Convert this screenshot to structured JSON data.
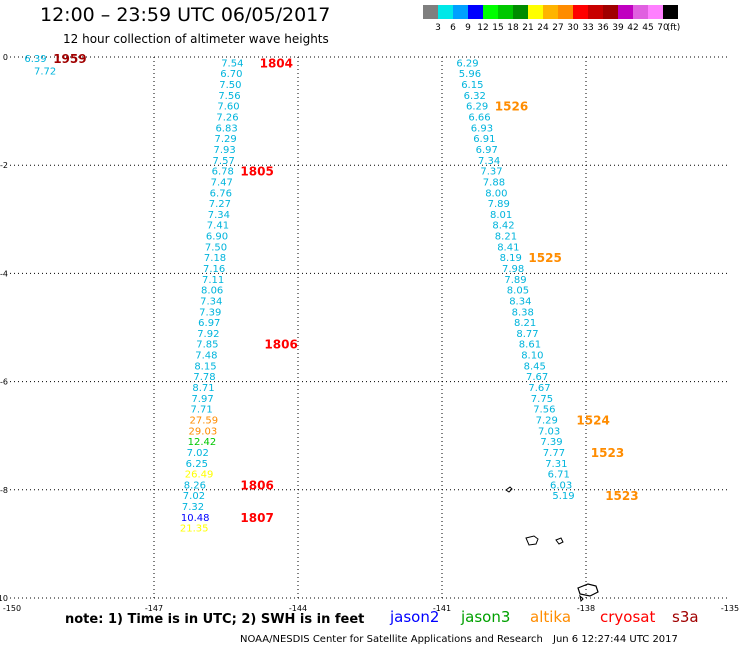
{
  "header": {
    "title": "12:00 – 23:59 UTC 06/05/2017",
    "subtitle": "12 hour collection of altimeter wave heights"
  },
  "legend": {
    "colors": [
      "#7f7f7f",
      "#00e8e8",
      "#00a0ff",
      "#0000ff",
      "#00ff00",
      "#00c800",
      "#008c00",
      "#ffff00",
      "#ffb400",
      "#ff8c00",
      "#ff0000",
      "#c80000",
      "#a00000",
      "#c000c0",
      "#e060e0",
      "#ff80ff",
      "#000000"
    ],
    "labels": [
      "3",
      "6",
      "9",
      "12",
      "15",
      "18",
      "21",
      "24",
      "27",
      "30",
      "33",
      "36",
      "39",
      "42",
      "45",
      "70",
      "(ft)"
    ]
  },
  "axes": {
    "x_labels": [
      "-150",
      "-147",
      "-144",
      "-141",
      "-138",
      "-135"
    ],
    "y_labels": [
      "0",
      "-2",
      "-4",
      "-6",
      "-8",
      "-10"
    ]
  },
  "map_data": {
    "track_left_top": [
      {
        "v": "6.39",
        "c": "#00b4dc",
        "lon": -149.7,
        "lat": -0.02
      },
      {
        "v": "7.72",
        "c": "#00b4dc",
        "lon": -149.5,
        "lat": -0.25
      }
    ],
    "track_left": {
      "color_default": "#00b4dc",
      "points": [
        {
          "v": "7.54",
          "lon": -145.6,
          "lat": -0.1
        },
        {
          "v": "6.70",
          "lon": -145.62,
          "lat": -0.3
        },
        {
          "v": "7.50",
          "lon": -145.64,
          "lat": -0.5
        },
        {
          "v": "7.56",
          "lon": -145.66,
          "lat": -0.7
        },
        {
          "v": "7.60",
          "lon": -145.68,
          "lat": -0.9
        },
        {
          "v": "7.26",
          "lon": -145.7,
          "lat": -1.1
        },
        {
          "v": "6.83",
          "lon": -145.72,
          "lat": -1.3
        },
        {
          "v": "7.29",
          "lon": -145.74,
          "lat": -1.5
        },
        {
          "v": "7.93",
          "lon": -145.76,
          "lat": -1.7
        },
        {
          "v": "7.57",
          "lon": -145.78,
          "lat": -1.9
        },
        {
          "v": "6.78",
          "lon": -145.8,
          "lat": -2.1
        },
        {
          "v": "7.47",
          "lon": -145.82,
          "lat": -2.3
        },
        {
          "v": "6.76",
          "lon": -145.84,
          "lat": -2.5
        },
        {
          "v": "7.27",
          "lon": -145.86,
          "lat": -2.7
        },
        {
          "v": "7.34",
          "lon": -145.88,
          "lat": -2.9
        },
        {
          "v": "7.41",
          "lon": -145.9,
          "lat": -3.1
        },
        {
          "v": "6.90",
          "lon": -145.92,
          "lat": -3.3
        },
        {
          "v": "7.50",
          "lon": -145.94,
          "lat": -3.5
        },
        {
          "v": "7.18",
          "lon": -145.96,
          "lat": -3.7
        },
        {
          "v": "7.16",
          "lon": -145.98,
          "lat": -3.9
        },
        {
          "v": "7.11",
          "lon": -146.0,
          "lat": -4.1
        },
        {
          "v": "8.06",
          "lon": -146.02,
          "lat": -4.3
        },
        {
          "v": "7.34",
          "lon": -146.04,
          "lat": -4.5
        },
        {
          "v": "7.39",
          "lon": -146.06,
          "lat": -4.7
        },
        {
          "v": "6.97",
          "lon": -146.08,
          "lat": -4.9
        },
        {
          "v": "7.92",
          "lon": -146.1,
          "lat": -5.1
        },
        {
          "v": "7.85",
          "lon": -146.12,
          "lat": -5.3
        },
        {
          "v": "7.48",
          "lon": -146.14,
          "lat": -5.5
        },
        {
          "v": "8.15",
          "lon": -146.16,
          "lat": -5.7
        },
        {
          "v": "7.78",
          "lon": -146.18,
          "lat": -5.9
        },
        {
          "v": "8.71",
          "lon": -146.2,
          "lat": -6.1
        },
        {
          "v": "7.97",
          "lon": -146.22,
          "lat": -6.3
        },
        {
          "v": "7.71",
          "lon": -146.24,
          "lat": -6.5
        },
        {
          "v": "27.59",
          "lon": -146.26,
          "lat": -6.7,
          "c": "#ff8c00"
        },
        {
          "v": "29.03",
          "lon": -146.28,
          "lat": -6.9,
          "c": "#ff8c00"
        },
        {
          "v": "12.42",
          "lon": -146.3,
          "lat": -7.1,
          "c": "#00c800"
        },
        {
          "v": "7.02",
          "lon": -146.32,
          "lat": -7.3
        },
        {
          "v": "6.25",
          "lon": -146.34,
          "lat": -7.5
        },
        {
          "v": "26.49",
          "lon": -146.36,
          "lat": -7.7,
          "c": "#ffff00"
        },
        {
          "v": "8.26",
          "lon": -146.38,
          "lat": -7.9
        },
        {
          "v": "7.02",
          "lon": -146.4,
          "lat": -8.1
        },
        {
          "v": "7.32",
          "lon": -146.42,
          "lat": -8.3
        },
        {
          "v": "10.48",
          "lon": -146.44,
          "lat": -8.5,
          "c": "#0000ff"
        },
        {
          "v": "21.35",
          "lon": -146.46,
          "lat": -8.7,
          "c": "#ffff00"
        }
      ]
    },
    "track_right": {
      "color_default": "#00b4dc",
      "points": [
        {
          "v": "6.29",
          "lon": -140.7,
          "lat": -0.1
        },
        {
          "v": "5.96",
          "lon": -140.65,
          "lat": -0.3
        },
        {
          "v": "6.15",
          "lon": -140.6,
          "lat": -0.5
        },
        {
          "v": "6.32",
          "lon": -140.55,
          "lat": -0.7
        },
        {
          "v": "6.29",
          "lon": -140.5,
          "lat": -0.9
        },
        {
          "v": "6.66",
          "lon": -140.45,
          "lat": -1.1
        },
        {
          "v": "6.93",
          "lon": -140.4,
          "lat": -1.3
        },
        {
          "v": "6.91",
          "lon": -140.35,
          "lat": -1.5
        },
        {
          "v": "6.97",
          "lon": -140.3,
          "lat": -1.7
        },
        {
          "v": "7.34",
          "lon": -140.25,
          "lat": -1.9
        },
        {
          "v": "7.37",
          "lon": -140.2,
          "lat": -2.1
        },
        {
          "v": "7.88",
          "lon": -140.15,
          "lat": -2.3
        },
        {
          "v": "8.00",
          "lon": -140.1,
          "lat": -2.5
        },
        {
          "v": "7.89",
          "lon": -140.05,
          "lat": -2.7
        },
        {
          "v": "8.01",
          "lon": -140.0,
          "lat": -2.9
        },
        {
          "v": "8.42",
          "lon": -139.95,
          "lat": -3.1
        },
        {
          "v": "8.21",
          "lon": -139.9,
          "lat": -3.3
        },
        {
          "v": "8.41",
          "lon": -139.85,
          "lat": -3.5
        },
        {
          "v": "8.19",
          "lon": -139.8,
          "lat": -3.7
        },
        {
          "v": "7.98",
          "lon": -139.75,
          "lat": -3.9
        },
        {
          "v": "7.89",
          "lon": -139.7,
          "lat": -4.1
        },
        {
          "v": "8.05",
          "lon": -139.65,
          "lat": -4.3
        },
        {
          "v": "8.34",
          "lon": -139.6,
          "lat": -4.5
        },
        {
          "v": "8.38",
          "lon": -139.55,
          "lat": -4.7
        },
        {
          "v": "8.21",
          "lon": -139.5,
          "lat": -4.9
        },
        {
          "v": "8.77",
          "lon": -139.45,
          "lat": -5.1
        },
        {
          "v": "8.61",
          "lon": -139.4,
          "lat": -5.3
        },
        {
          "v": "8.10",
          "lon": -139.35,
          "lat": -5.5
        },
        {
          "v": "8.45",
          "lon": -139.3,
          "lat": -5.7
        },
        {
          "v": "7.67",
          "lon": -139.25,
          "lat": -5.9
        },
        {
          "v": "7.67",
          "lon": -139.2,
          "lat": -6.1
        },
        {
          "v": "7.75",
          "lon": -139.15,
          "lat": -6.3
        },
        {
          "v": "7.56",
          "lon": -139.1,
          "lat": -6.5
        },
        {
          "v": "7.29",
          "lon": -139.05,
          "lat": -6.7
        },
        {
          "v": "7.03",
          "lon": -139.0,
          "lat": -6.9
        },
        {
          "v": "7.39",
          "lon": -138.95,
          "lat": -7.1
        },
        {
          "v": "7.77",
          "lon": -138.9,
          "lat": -7.3
        },
        {
          "v": "7.31",
          "lon": -138.85,
          "lat": -7.5
        },
        {
          "v": "6.71",
          "lon": -138.8,
          "lat": -7.7
        },
        {
          "v": "6.03",
          "lon": -138.75,
          "lat": -7.9
        },
        {
          "v": "5.19",
          "lon": -138.7,
          "lat": -8.1
        }
      ]
    },
    "time_labels": [
      {
        "t": "1959",
        "c": "#a00000",
        "lon": -149.1,
        "lat": -0.02
      },
      {
        "t": "1804",
        "c": "#ff0000",
        "lon": -144.8,
        "lat": -0.1
      },
      {
        "t": "1805",
        "c": "#ff0000",
        "lon": -145.2,
        "lat": -2.1
      },
      {
        "t": "1806",
        "c": "#ff0000",
        "lon": -144.7,
        "lat": -5.3
      },
      {
        "t": "1806",
        "c": "#ff0000",
        "lon": -145.2,
        "lat": -7.9
      },
      {
        "t": "1807",
        "c": "#ff0000",
        "lon": -145.2,
        "lat": -8.5
      },
      {
        "t": "1526",
        "c": "#ff8c00",
        "lon": -139.9,
        "lat": -0.9
      },
      {
        "t": "1525",
        "c": "#ff8c00",
        "lon": -139.2,
        "lat": -3.7
      },
      {
        "t": "1524",
        "c": "#ff8c00",
        "lon": -138.2,
        "lat": -6.7
      },
      {
        "t": "1523",
        "c": "#ff8c00",
        "lon": -137.9,
        "lat": -7.3
      },
      {
        "t": "1523",
        "c": "#ff8c00",
        "lon": -137.6,
        "lat": -8.1
      }
    ]
  },
  "footer": {
    "note": "note: 1) Time is in UTC; 2) SWH is in feet",
    "missions": [
      {
        "name": "jason2",
        "color": "#0000ff"
      },
      {
        "name": "jason3",
        "color": "#00a000"
      },
      {
        "name": "altika",
        "color": "#ff8c00"
      },
      {
        "name": "cryosat",
        "color": "#ff0000"
      },
      {
        "name": "s3a",
        "color": "#a00000"
      }
    ],
    "credit": "NOAA/NESDIS Center for Satellite Applications and Research",
    "timestamp": "Jun  6 12:27:44 UTC 2017"
  }
}
